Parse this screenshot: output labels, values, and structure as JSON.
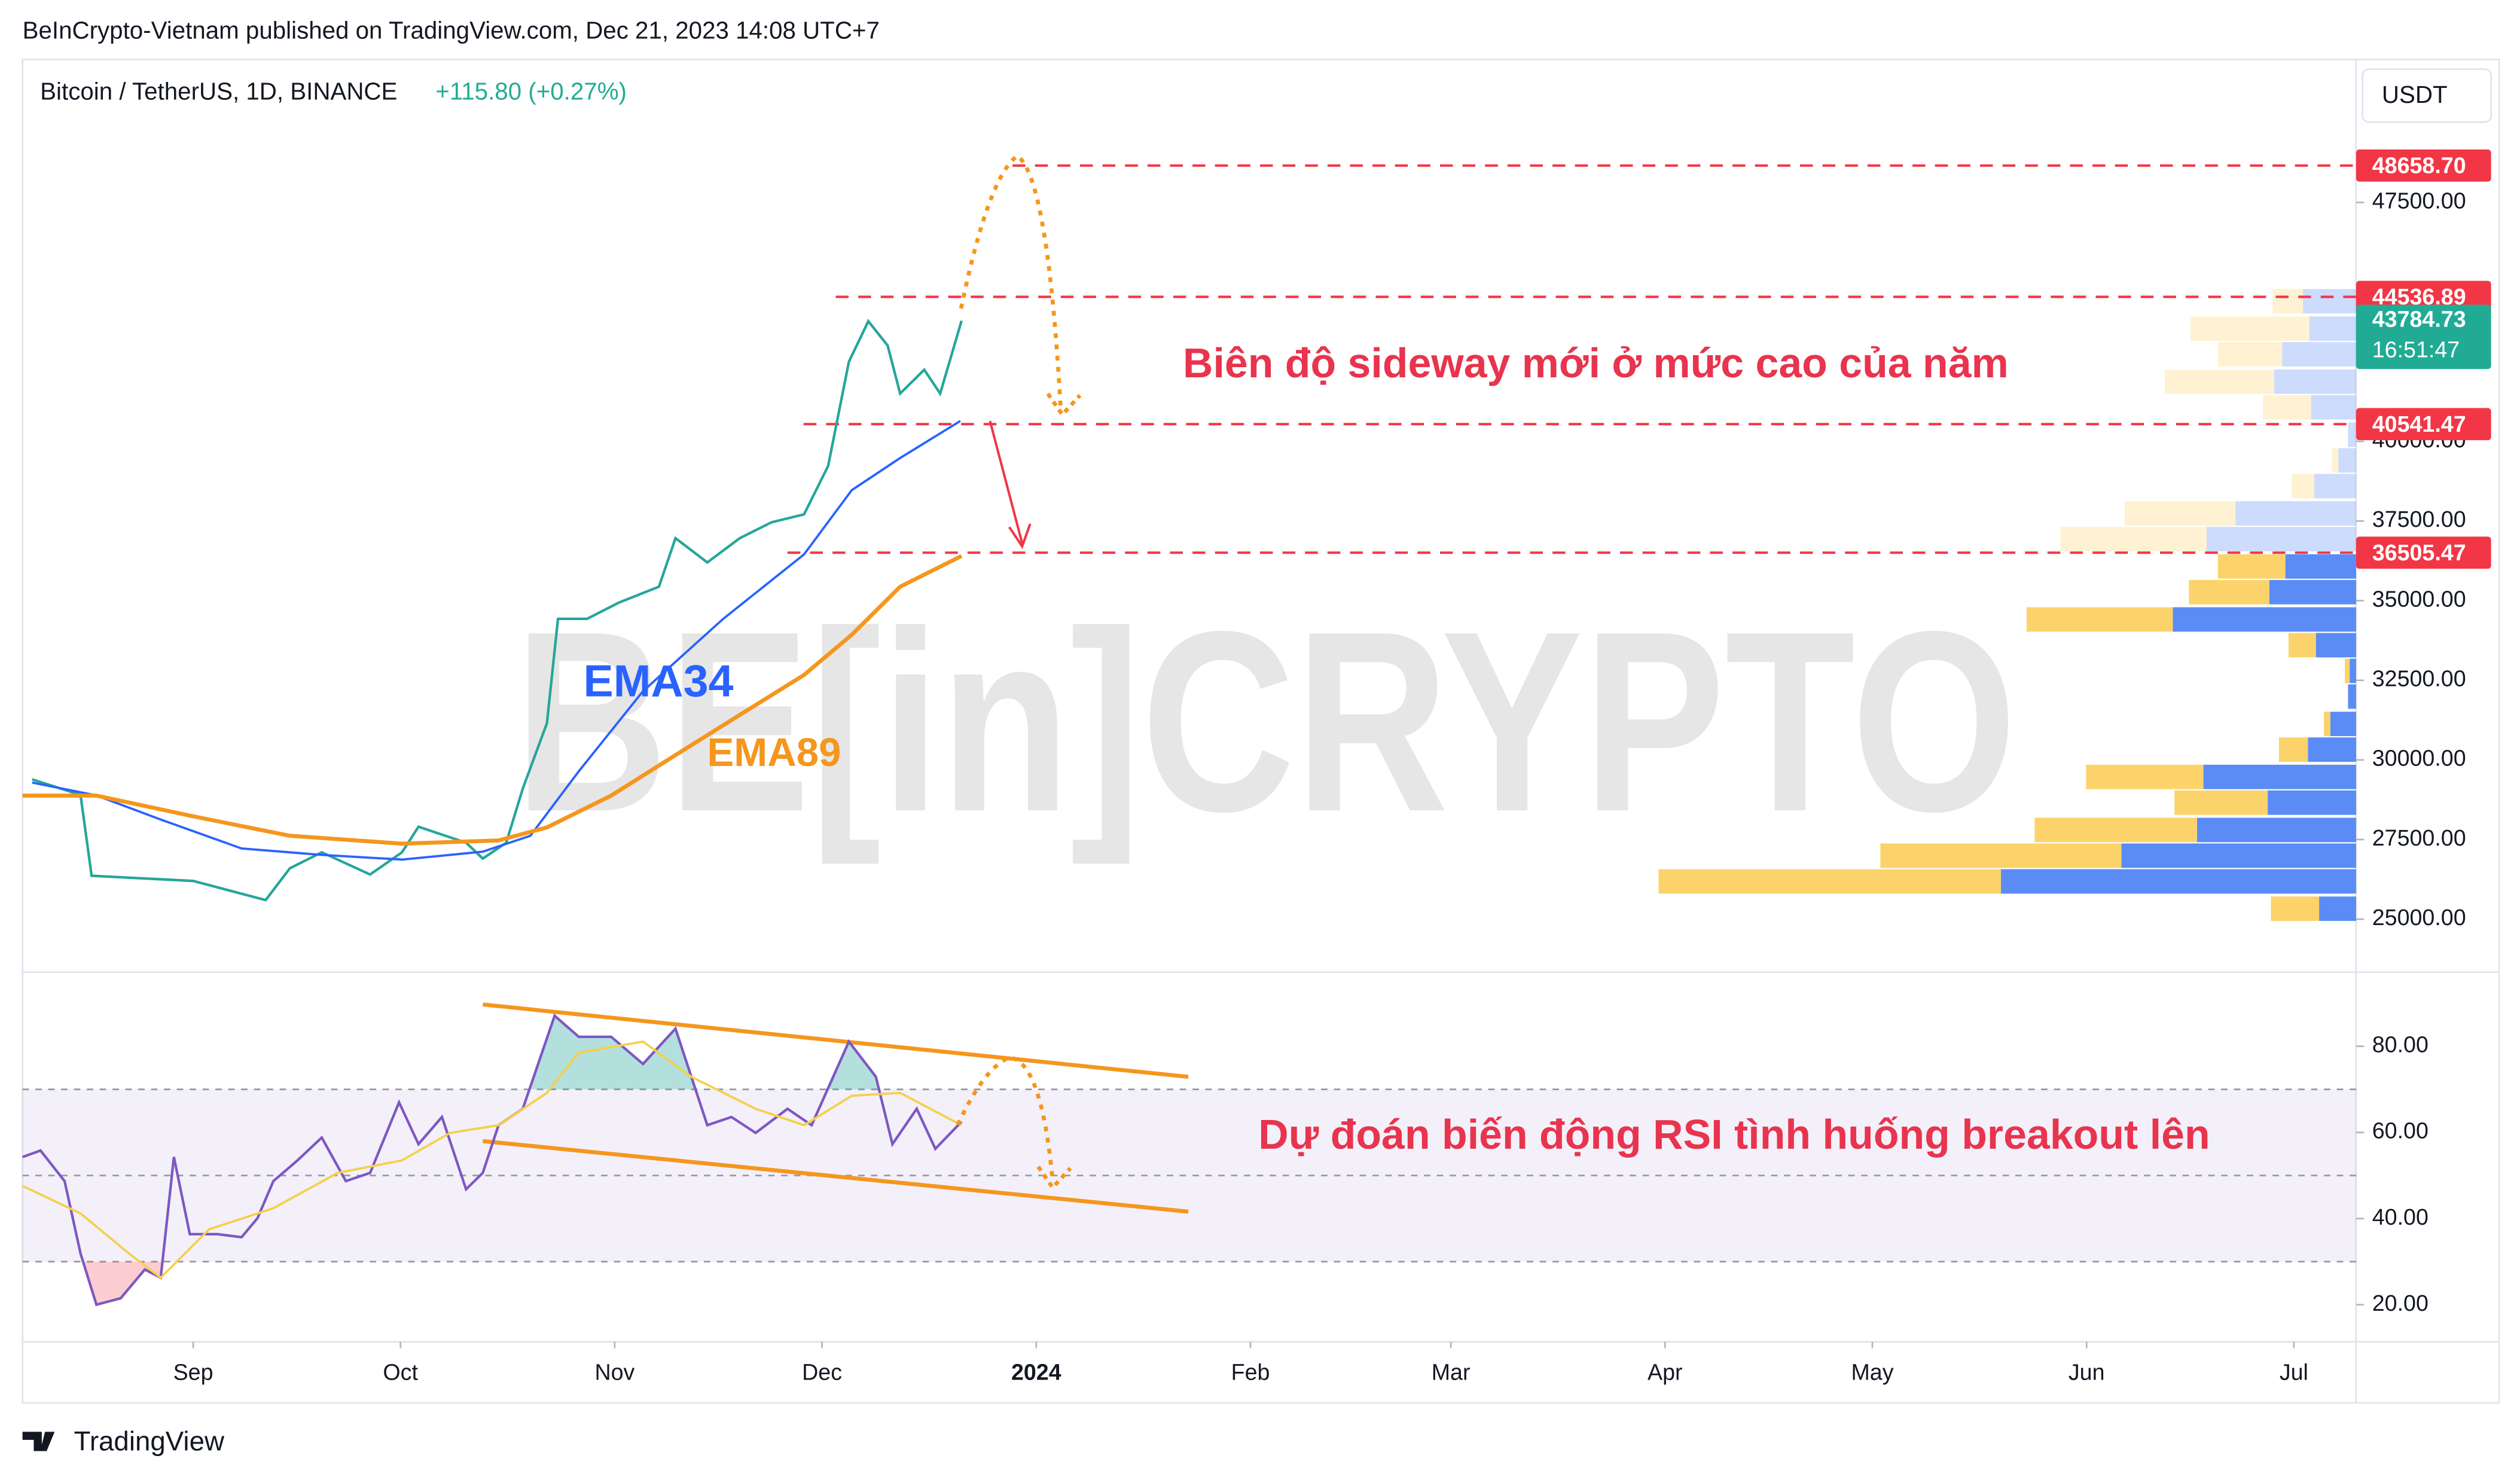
{
  "header": {
    "published": "BeInCrypto-Vietnam published on TradingView.com, Dec 21, 2023 14:08 UTC+7",
    "symbol": "Bitcoin / TetherUS, 1D, BINANCE",
    "change": "+115.80 (+0.27%)",
    "currency": "USDT",
    "watermark": "BE[in]CRYPTO",
    "footer": "TradingView"
  },
  "chart_data": [
    {
      "type": "line",
      "xlim": [
        -24.7,
        313
      ],
      "ylim": [
        23335,
        51990
      ],
      "yticks": [
        {
          "value": 25000,
          "label": "25000.00"
        },
        {
          "value": 27500,
          "label": "27500.00"
        },
        {
          "value": 30000,
          "label": "30000.00"
        },
        {
          "value": 32500,
          "label": "32500.00"
        },
        {
          "value": 35000,
          "label": "35000.00"
        },
        {
          "value": 37500,
          "label": "37500.00"
        },
        {
          "value": 40000,
          "label": "40000.00"
        },
        {
          "value": 47500,
          "label": "47500.00"
        }
      ],
      "series": [
        {
          "color": "#26a69a",
          "x": [
            -23.3,
            -16.3,
            -14.7,
            0,
            10.5,
            14,
            18.6,
            25.6,
            30.2,
            32.6,
            39.5,
            41.9,
            45.3,
            47.7,
            51.2,
            52.8,
            57,
            61.6,
            67.4,
            69.8,
            74.4,
            79.1,
            83.7,
            88.4,
            91.9,
            94.9,
            97.7,
            100.5,
            102.3,
            105.8,
            108.1,
            111.2
          ],
          "values": [
            29390,
            28900,
            26360,
            26200,
            25600,
            26600,
            27100,
            26400,
            27100,
            27900,
            27400,
            26900,
            27400,
            29100,
            31150,
            34430,
            34430,
            34940,
            35440,
            36960,
            36200,
            36960,
            37460,
            37710,
            39230,
            42500,
            43770,
            43010,
            41500,
            42250,
            41500,
            43784.73
          ]
        },
        {
          "name": "EMA34",
          "color": "#2962ff",
          "x": [
            -23.3,
            -14,
            -4.7,
            7,
            18.6,
            30.2,
            41.9,
            48.8,
            55.8,
            65.1,
            76.7,
            88.4,
            95.3,
            102.3,
            111
          ],
          "values": [
            29290,
            28885,
            28130,
            27220,
            27020,
            26870,
            27120,
            27620,
            29640,
            32160,
            34430,
            36450,
            38470,
            39480,
            40640
          ]
        },
        {
          "name": "EMA89",
          "color": "#f5961d",
          "x": [
            -24.7,
            -14,
            0,
            14,
            30.2,
            44.2,
            51.2,
            60.5,
            69.8,
            79.1,
            88.4,
            95.3,
            102.3,
            111.2
          ],
          "values": [
            28880,
            28880,
            28230,
            27620,
            27370,
            27470,
            27880,
            28880,
            30150,
            31410,
            32670,
            33930,
            35440,
            36400
          ]
        }
      ],
      "levels": [
        {
          "value": 48658.7,
          "label": "48658.70"
        },
        {
          "value": 44536.89,
          "label": "44536.89"
        },
        {
          "value": 40541.47,
          "label": "40541.47"
        },
        {
          "value": 36505.47,
          "label": "36505.47"
        }
      ],
      "level_color": "#f23645",
      "last_price": {
        "value": 43784.73,
        "label": "43784.73",
        "countdown": "16:51:47",
        "color": "#22ab94"
      },
      "annotation": "Biên độ sideway mới ở mức cao của năm",
      "volume_profile": {
        "up_color": "#5b8cf5",
        "down_color": "#fbd36a",
        "value_area": [
          25303,
          36048
        ],
        "rows": [
          {
            "price": 25303,
            "up": 23,
            "down": 30
          },
          {
            "price": 26160,
            "up": 221,
            "down": 213
          },
          {
            "price": 26968,
            "up": 146,
            "down": 150
          },
          {
            "price": 27775,
            "up": 99,
            "down": 101
          },
          {
            "price": 28632,
            "up": 55,
            "down": 58
          },
          {
            "price": 29440,
            "up": 95,
            "down": 73
          },
          {
            "price": 30297,
            "up": 30,
            "down": 18
          },
          {
            "price": 31104,
            "up": 16,
            "down": 4
          },
          {
            "price": 31962,
            "up": 5,
            "down": 0
          },
          {
            "price": 32769,
            "up": 4,
            "down": 3
          },
          {
            "price": 33576,
            "up": 25,
            "down": 17
          },
          {
            "price": 34384,
            "up": 114,
            "down": 91
          },
          {
            "price": 35241,
            "up": 54,
            "down": 50
          },
          {
            "price": 36048,
            "up": 44,
            "down": 42
          },
          {
            "price": 36906,
            "up": 93,
            "down": 91
          },
          {
            "price": 37713,
            "up": 75,
            "down": 69
          },
          {
            "price": 38571,
            "up": 26,
            "down": 14
          },
          {
            "price": 39378,
            "up": 11,
            "down": 4
          },
          {
            "price": 40185,
            "up": 5,
            "down": 0
          },
          {
            "price": 41043,
            "up": 28,
            "down": 30
          },
          {
            "price": 41850,
            "up": 51,
            "down": 68
          },
          {
            "price": 42708,
            "up": 46,
            "down": 40
          },
          {
            "price": 43515,
            "up": 29,
            "down": 74
          },
          {
            "price": 44373,
            "up": 33,
            "down": 19
          }
        ]
      }
    },
    {
      "type": "line",
      "xlim": [
        -24.7,
        313
      ],
      "ylim": [
        11.4,
        97.2
      ],
      "yticks": [
        {
          "value": 20,
          "label": "20.00"
        },
        {
          "value": 40,
          "label": "40.00"
        },
        {
          "value": 60,
          "label": "60.00"
        },
        {
          "value": 80,
          "label": "80.00"
        }
      ],
      "xticks": [
        {
          "value": 0,
          "label": "Sep"
        },
        {
          "value": 30,
          "label": "Oct"
        },
        {
          "value": 61,
          "label": "Nov"
        },
        {
          "value": 91,
          "label": "Dec"
        },
        {
          "value": 122,
          "label": "2024"
        },
        {
          "value": 153,
          "label": "Feb"
        },
        {
          "value": 182,
          "label": "Mar"
        },
        {
          "value": 213,
          "label": "Apr"
        },
        {
          "value": 243,
          "label": "May"
        },
        {
          "value": 274,
          "label": "Jun"
        },
        {
          "value": 304,
          "label": "Jul"
        }
      ],
      "band": [
        30,
        70
      ],
      "levels": [
        30,
        50,
        70
      ],
      "series": [
        {
          "color": "#7e57c2",
          "x": [
            -24.7,
            -22.1,
            -18.6,
            -16.3,
            -14,
            -10.5,
            -7,
            -4.7,
            -2.8,
            -0.5,
            3.5,
            7,
            9.3,
            11.6,
            15.1,
            18.6,
            22.1,
            25.6,
            29.8,
            32.6,
            36,
            39.5,
            41.9,
            44.2,
            47.7,
            52.3,
            55.8,
            60.5,
            65.1,
            69.8,
            74.4,
            77.9,
            81.4,
            86,
            89.5,
            94.9,
            98.8,
            101.2,
            104.7,
            107.4,
            111.2
          ],
          "values": [
            54.3,
            55.8,
            48.7,
            31.9,
            20,
            21.5,
            28.2,
            26.3,
            54.3,
            36.4,
            36.4,
            35.7,
            40.1,
            48.7,
            53.5,
            58.8,
            48.7,
            50.6,
            67,
            57.3,
            63.6,
            46.8,
            50.6,
            61.7,
            65.5,
            87.1,
            82.2,
            82.2,
            75.9,
            84.1,
            61.7,
            63.6,
            59.9,
            65.5,
            61.7,
            81.1,
            72.9,
            57.3,
            65.5,
            56.2,
            62.5
          ]
        },
        {
          "color": "#f5d04a",
          "x": [
            -24.7,
            -16.3,
            -9.3,
            -4.7,
            2.3,
            11.6,
            20.9,
            30.2,
            37.2,
            44.2,
            51.2,
            55.8,
            65.1,
            72.1,
            81.4,
            88.4,
            95.3,
            102.3,
            111.2
          ],
          "values": [
            47.6,
            41.2,
            31.9,
            26.3,
            37.5,
            42.4,
            50.6,
            53.5,
            59.9,
            61.7,
            69.2,
            78.5,
            81.1,
            72.9,
            65.5,
            61.7,
            68.5,
            69.2,
            61.7
          ]
        }
      ],
      "trendlines": [
        {
          "x": [
            41.9,
            144
          ],
          "values": [
            89.7,
            72.9
          ]
        },
        {
          "x": [
            41.9,
            144
          ],
          "values": [
            58,
            41.6
          ]
        }
      ],
      "trend_color": "#f5961d",
      "annotation": "Dự đoán biến động RSI tình huống breakout lên"
    }
  ]
}
